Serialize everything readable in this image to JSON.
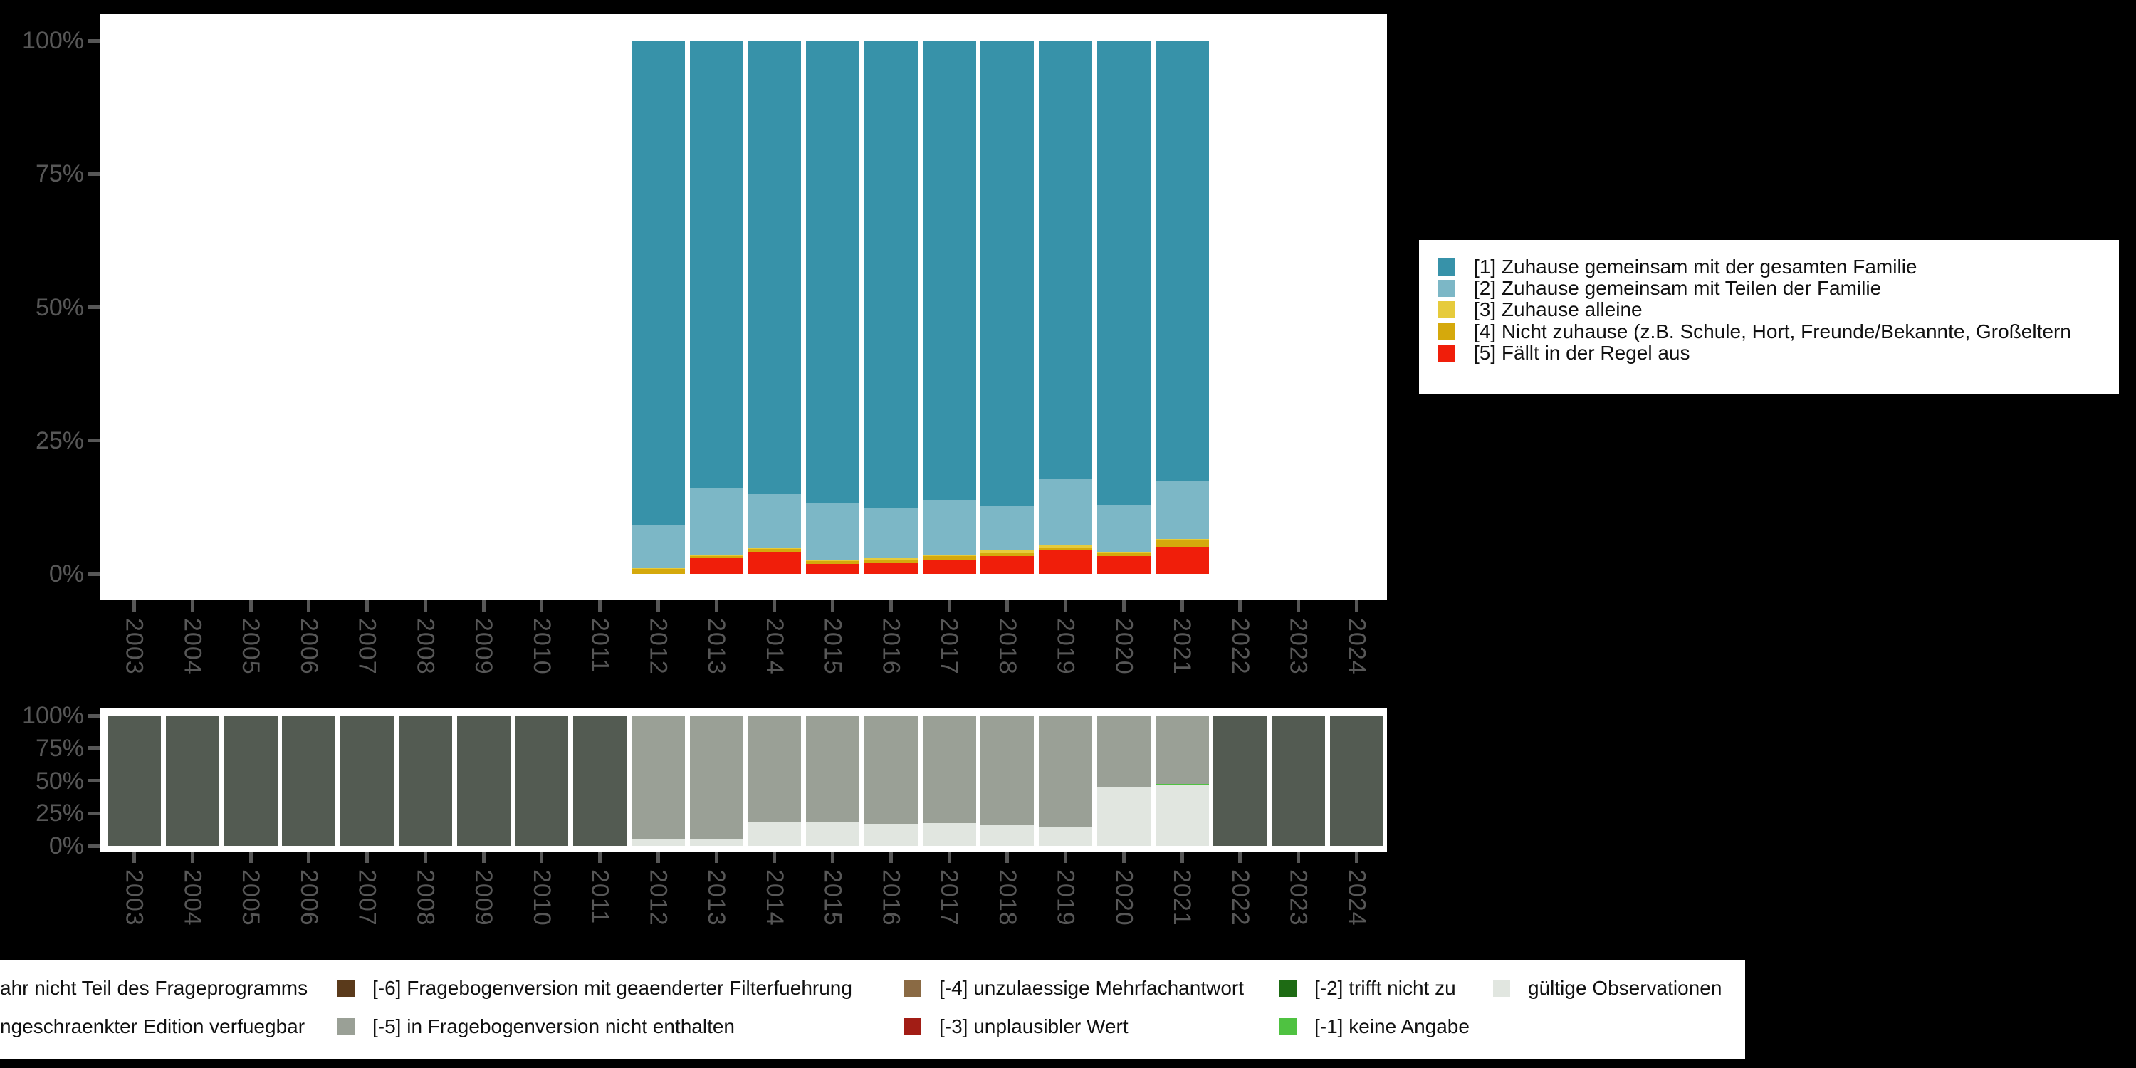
{
  "figure": {
    "background_color": "#000000",
    "panel_color": "#ffffff",
    "axis_text_color": "#575757"
  },
  "axes": {
    "y_tick_labels": [
      "100%",
      "75%",
      "50%",
      "25%",
      "0%"
    ],
    "x_tick_labels": [
      "2003",
      "2004",
      "2005",
      "2006",
      "2007",
      "2008",
      "2009",
      "2010",
      "2011",
      "2012",
      "2013",
      "2014",
      "2015",
      "2016",
      "2017",
      "2018",
      "2019",
      "2020",
      "2021",
      "2022",
      "2023",
      "2024"
    ]
  },
  "chart_data": [
    {
      "type": "bar",
      "stacked": true,
      "title": "",
      "xlabel": "",
      "ylabel": "",
      "ylim": [
        0,
        100
      ],
      "grid": false,
      "legend_position": "right",
      "categories": [
        "2003",
        "2004",
        "2005",
        "2006",
        "2007",
        "2008",
        "2009",
        "2010",
        "2011",
        "2012",
        "2013",
        "2014",
        "2015",
        "2016",
        "2017",
        "2018",
        "2019",
        "2020",
        "2021",
        "2022",
        "2023",
        "2024"
      ],
      "ytick_labels": [
        "0%",
        "25%",
        "50%",
        "75%",
        "100%"
      ],
      "stack_order_bottom_to_top": [
        4,
        3,
        2,
        1,
        0
      ],
      "series": [
        {
          "name": "[1] Zuhause gemeinsam mit der gesamten Familie",
          "color": "#3792a9",
          "values": [
            0,
            0,
            0,
            0,
            0,
            0,
            0,
            0,
            0,
            90.9,
            84.0,
            85.1,
            86.8,
            87.6,
            86.1,
            87.2,
            82.2,
            87.0,
            82.5,
            0,
            0,
            0
          ]
        },
        {
          "name": "[2] Zuhause gemeinsam mit Teilen der Familie",
          "color": "#7cb7c6",
          "values": [
            0,
            0,
            0,
            0,
            0,
            0,
            0,
            0,
            0,
            8.0,
            12.5,
            10.0,
            10.5,
            9.4,
            10.3,
            8.4,
            12.4,
            8.9,
            11.0,
            0,
            0,
            0
          ]
        },
        {
          "name": "[3] Zuhause alleine",
          "color": "#e6cb3c",
          "values": [
            0,
            0,
            0,
            0,
            0,
            0,
            0,
            0,
            0,
            0.2,
            0.2,
            0.2,
            0.3,
            0.3,
            0.3,
            0.4,
            0.6,
            0.2,
            0.2,
            0,
            0,
            0
          ]
        },
        {
          "name": "[4] Nicht zuhause (z.B. Schule, Hort, Freunde/Bekannte, Großeltern",
          "color": "#d5a90c",
          "values": [
            0,
            0,
            0,
            0,
            0,
            0,
            0,
            0,
            0,
            0.9,
            0.4,
            0.5,
            0.5,
            0.7,
            0.7,
            0.6,
            0.3,
            0.5,
            1.2,
            0,
            0,
            0
          ]
        },
        {
          "name": "[5] Fällt in der Regel aus",
          "color": "#f01e0a",
          "values": [
            0,
            0,
            0,
            0,
            0,
            0,
            0,
            0,
            0,
            0.0,
            2.9,
            4.2,
            1.9,
            2.0,
            2.6,
            3.4,
            4.5,
            3.4,
            5.1,
            0,
            0,
            0
          ]
        }
      ]
    },
    {
      "type": "bar",
      "stacked": true,
      "title": "",
      "xlabel": "",
      "ylabel": "",
      "ylim": [
        0,
        100
      ],
      "grid": false,
      "legend_position": "bottom",
      "categories": [
        "2003",
        "2004",
        "2005",
        "2006",
        "2007",
        "2008",
        "2009",
        "2010",
        "2011",
        "2012",
        "2013",
        "2014",
        "2015",
        "2016",
        "2017",
        "2018",
        "2019",
        "2020",
        "2021",
        "2022",
        "2023",
        "2024"
      ],
      "ytick_labels": [
        "0%",
        "25%",
        "50%",
        "75%",
        "100%"
      ],
      "stack_order_bottom_to_top": [
        3,
        2,
        1,
        0
      ],
      "series": [
        {
          "name": "ahr nicht Teil des Frageprogramms",
          "color": "#535b52",
          "values": [
            100,
            100,
            100,
            100,
            100,
            100,
            100,
            100,
            100,
            0,
            0,
            0,
            0,
            0,
            0,
            0,
            0,
            0,
            0,
            100,
            100,
            100
          ]
        },
        {
          "name": "[-5] in Fragebogenversion nicht enthalten",
          "color": "#9aa096",
          "values": [
            0,
            0,
            0,
            0,
            0,
            0,
            0,
            0,
            0,
            95.0,
            95.0,
            81.5,
            82.0,
            83.0,
            82.5,
            84.0,
            85.5,
            54.4,
            52.4,
            0,
            0,
            0
          ]
        },
        {
          "name": "[-1] keine Angabe",
          "color": "#4fc241",
          "values": [
            0,
            0,
            0,
            0,
            0,
            0,
            0,
            0,
            0,
            0,
            0,
            0,
            0,
            0.7,
            0,
            0,
            0,
            0.8,
            0.8,
            0,
            0,
            0
          ]
        },
        {
          "name": "gültige Observationen",
          "color": "#e1e6e0",
          "values": [
            0,
            0,
            0,
            0,
            0,
            0,
            0,
            0,
            0,
            5.0,
            5.0,
            18.5,
            18.0,
            16.3,
            17.5,
            16.0,
            14.5,
            44.8,
            46.8,
            0,
            0,
            0
          ]
        }
      ]
    }
  ],
  "legends": {
    "top_right": {
      "items": [
        {
          "label": "[1] Zuhause gemeinsam mit der gesamten Familie",
          "color": "#3792a9"
        },
        {
          "label": "[2] Zuhause gemeinsam mit Teilen der Familie",
          "color": "#7cb7c6"
        },
        {
          "label": "[3] Zuhause alleine",
          "color": "#e6cb3c"
        },
        {
          "label": "[4] Nicht zuhause (z.B. Schule, Hort, Freunde/Bekannte, Großeltern",
          "color": "#d5a90c"
        },
        {
          "label": "[5] Fällt in der Regel aus",
          "color": "#f01e0a"
        }
      ]
    },
    "bottom": {
      "rows": [
        [
          {
            "label": "ahr nicht Teil des Frageprogramms",
            "color": null
          },
          {
            "label": "[-6] Fragebogenversion mit geaenderter Filterfuehrung",
            "color": "#5a3a1b"
          },
          {
            "label": "[-4] unzulaessige Mehrfachantwort",
            "color": "#8a6a44"
          },
          {
            "label": "[-2] trifft nicht zu",
            "color": "#1e6b14"
          },
          {
            "label": "gültige Observationen",
            "color": "#e1e6e0"
          }
        ],
        [
          {
            "label": "ngeschraenkter Edition verfuegbar",
            "color": null
          },
          {
            "label": "[-5] in Fragebogenversion nicht enthalten",
            "color": "#9aa096"
          },
          {
            "label": "[-3] unplausibler Wert",
            "color": "#a21d15"
          },
          {
            "label": "[-1] keine Angabe",
            "color": "#4fc241"
          }
        ]
      ]
    }
  }
}
